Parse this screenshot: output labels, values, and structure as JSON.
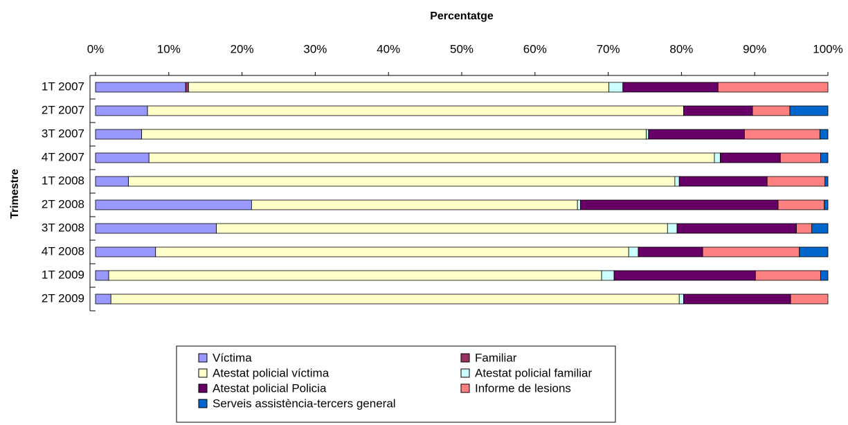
{
  "chart_data": {
    "type": "stacked-bar-horizontal",
    "title": "Percentatge",
    "y_label": "Trimestre",
    "categories": [
      "1T 2007",
      "2T 2007",
      "3T 2007",
      "4T 2007",
      "1T 2008",
      "2T 2008",
      "3T 2008",
      "4T 2008",
      "1T 2009",
      "2T 2009"
    ],
    "series": [
      {
        "name": "Víctima",
        "color": "#9999ff",
        "values": [
          12.3,
          7.1,
          6.3,
          7.3,
          4.5,
          21.3,
          16.5,
          8.2,
          1.8,
          2.1
        ]
      },
      {
        "name": "Familiar",
        "color": "#993366",
        "values": [
          0.4,
          0,
          0,
          0,
          0,
          0,
          0,
          0,
          0,
          0
        ]
      },
      {
        "name": "Atestat policial víctima",
        "color": "#ffffcc",
        "values": [
          57.4,
          73.2,
          68.9,
          77.2,
          74.6,
          44.5,
          61.6,
          64.6,
          67.3,
          77.6
        ]
      },
      {
        "name": "Atestat policial familiar",
        "color": "#ccffff",
        "values": [
          1.9,
          0,
          0.3,
          0.8,
          0.6,
          0.4,
          1.3,
          1.3,
          1.7,
          0.6
        ]
      },
      {
        "name": "Atestat policial Policia",
        "color": "#660066",
        "values": [
          13.0,
          9.4,
          13.1,
          8.2,
          12.0,
          27.0,
          16.3,
          8.8,
          19.3,
          14.6
        ]
      },
      {
        "name": "Informe de lesions",
        "color": "#ff8080",
        "values": [
          15.0,
          5.1,
          10.3,
          5.5,
          7.9,
          6.3,
          2.1,
          13.2,
          8.9,
          5.1
        ]
      },
      {
        "name": "Serveis assistència-tercers general",
        "color": "#0066cc",
        "values": [
          0,
          5.2,
          1.1,
          1.0,
          0.4,
          0.5,
          2.2,
          3.9,
          1.0,
          0
        ]
      }
    ],
    "xlim": [
      0,
      100
    ],
    "xticks": [
      {
        "value": 0,
        "label": "0%"
      },
      {
        "value": 10,
        "label": "10%"
      },
      {
        "value": 20,
        "label": "20%"
      },
      {
        "value": 30,
        "label": "30%"
      },
      {
        "value": 40,
        "label": "40%"
      },
      {
        "value": 50,
        "label": "50%"
      },
      {
        "value": 60,
        "label": "60%"
      },
      {
        "value": 70,
        "label": "70%"
      },
      {
        "value": 80,
        "label": "80%"
      },
      {
        "value": 90,
        "label": "90%"
      },
      {
        "value": 100,
        "label": "100%"
      }
    ]
  }
}
